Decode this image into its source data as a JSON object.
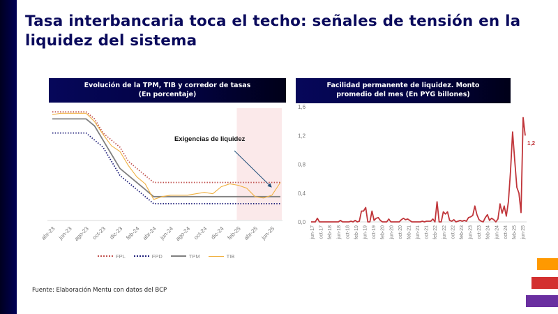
{
  "title": "Tasa interbancaria toca el techo: señales de tensión en la liquidez del sistema",
  "source": "Fuente: Elaboración Mentu con datos del BCP",
  "colors": {
    "title": "#0a0a5c",
    "fpl": "#c0504d",
    "fpd": "#1f1f7a",
    "tpm": "#808080",
    "tib": "#f0b040",
    "facility_line": "#c0353a",
    "highlight": "#fbe9ea",
    "arrow": "#1f4e79",
    "deco_orange": "#ff9900",
    "deco_red": "#d32f2f",
    "deco_purple": "#6a2fa0"
  },
  "chart_data": [
    {
      "type": "line",
      "title": "Evolución de la TPM, TIB y corredor de tasas",
      "subtitle": "(En porcentaje)",
      "annotation": "Exigencias de liquidez",
      "highlight_range": [
        "feb-25",
        "jul-25"
      ],
      "x": [
        "abr-23",
        "may-23",
        "jun-23",
        "jul-23",
        "ago-23",
        "sep-23",
        "oct-23",
        "nov-23",
        "dic-23",
        "ene-24",
        "feb-24",
        "mar-24",
        "abr-24",
        "may-24",
        "jun-24",
        "jul-24",
        "ago-24",
        "sep-24",
        "oct-24",
        "nov-24",
        "dic-24",
        "ene-25",
        "feb-25",
        "mar-25",
        "abr-25",
        "may-25",
        "jun-25",
        "jul-25"
      ],
      "tick_labels": [
        "abr-23",
        "jun-23",
        "ago-23",
        "oct-23",
        "dic-23",
        "feb-24",
        "abr-24",
        "jun-24",
        "ago-24",
        "oct-24",
        "dic-24",
        "feb-25",
        "abr-25",
        "jun-25"
      ],
      "ylim": [
        5.0,
        9.0
      ],
      "series": [
        {
          "name": "FPL",
          "style": "dotted",
          "values": [
            8.5,
            8.5,
            8.5,
            8.5,
            8.5,
            8.25,
            7.75,
            7.5,
            7.25,
            6.75,
            6.5,
            6.25,
            6.0,
            6.0,
            6.0,
            6.0,
            6.0,
            6.0,
            6.0,
            6.0,
            6.0,
            6.0,
            6.0,
            6.0,
            6.0,
            6.0,
            6.0,
            6.0
          ]
        },
        {
          "name": "FPD",
          "style": "dotted",
          "values": [
            7.75,
            7.75,
            7.75,
            7.75,
            7.75,
            7.5,
            7.25,
            6.75,
            6.25,
            6.0,
            5.75,
            5.5,
            5.25,
            5.25,
            5.25,
            5.25,
            5.25,
            5.25,
            5.25,
            5.25,
            5.25,
            5.25,
            5.25,
            5.25,
            5.25,
            5.25,
            5.25,
            5.25
          ]
        },
        {
          "name": "TPM",
          "style": "solid",
          "values": [
            8.25,
            8.25,
            8.25,
            8.25,
            8.25,
            8.0,
            7.5,
            7.0,
            6.5,
            6.25,
            6.0,
            5.75,
            5.5,
            5.5,
            5.5,
            5.5,
            5.5,
            5.5,
            5.5,
            5.5,
            5.5,
            5.5,
            5.5,
            5.5,
            5.5,
            5.5,
            5.5,
            5.5
          ]
        },
        {
          "name": "TIB",
          "style": "solid",
          "values": [
            8.4,
            8.45,
            8.45,
            8.45,
            8.45,
            8.15,
            7.7,
            7.3,
            7.1,
            6.6,
            6.2,
            5.95,
            5.4,
            5.5,
            5.55,
            5.55,
            5.55,
            5.6,
            5.65,
            5.6,
            5.85,
            5.95,
            5.9,
            5.8,
            5.5,
            5.45,
            5.55,
            6.0
          ]
        }
      ]
    },
    {
      "type": "line",
      "title": "Facilidad permanente de liquidez. Monto promedio del mes (En PYG billones)",
      "ylim": [
        0.0,
        1.6
      ],
      "yticks": [
        "0,0",
        "0,4",
        "0,8",
        "1,2",
        "1,6"
      ],
      "tick_labels": [
        "jun-17",
        "oct-17",
        "feb-18",
        "jun-18",
        "oct-18",
        "feb-19",
        "jun-19",
        "oct-19",
        "feb-20",
        "jun-20",
        "oct-20",
        "feb-21",
        "jun-21",
        "oct-21",
        "feb-22",
        "jun-22",
        "oct-22",
        "feb-23",
        "jun-23",
        "oct-23",
        "feb-24",
        "jun-24",
        "oct-24",
        "feb-25",
        "jun-25"
      ],
      "end_label": "1,2",
      "series": [
        {
          "name": "Facilidad permanente de liquidez",
          "values": [
            0,
            0,
            0,
            0.05,
            0,
            0,
            0,
            0,
            0,
            0,
            0,
            0,
            0,
            0,
            0.02,
            0,
            0,
            0,
            0,
            0.01,
            0,
            0.02,
            0,
            0.01,
            0.15,
            0.15,
            0.2,
            0,
            0,
            0.15,
            0.02,
            0.05,
            0.06,
            0.02,
            0,
            0,
            0,
            0.04,
            0,
            0,
            0,
            0,
            0,
            0.03,
            0.05,
            0.03,
            0.04,
            0.02,
            0,
            0,
            0,
            0,
            0,
            0.01,
            0,
            0.01,
            0.01,
            0.01,
            0.04,
            0,
            0.28,
            0,
            0,
            0.14,
            0.11,
            0.14,
            0.02,
            0.01,
            0.03,
            0,
            0.01,
            0.02,
            0.01,
            0.02,
            0.01,
            0.06,
            0.07,
            0.09,
            0.22,
            0.1,
            0.03,
            0.01,
            0,
            0.06,
            0.1,
            0.02,
            0.05,
            0.03,
            0,
            0.04,
            0.25,
            0.12,
            0.22,
            0.08,
            0.28,
            0.7,
            1.25,
            0.85,
            0.48,
            0.4,
            0.13,
            1.45,
            1.2
          ]
        }
      ]
    }
  ],
  "legend": [
    {
      "label": "FPL"
    },
    {
      "label": "FPD"
    },
    {
      "label": "TPM"
    },
    {
      "label": "TIB"
    }
  ]
}
